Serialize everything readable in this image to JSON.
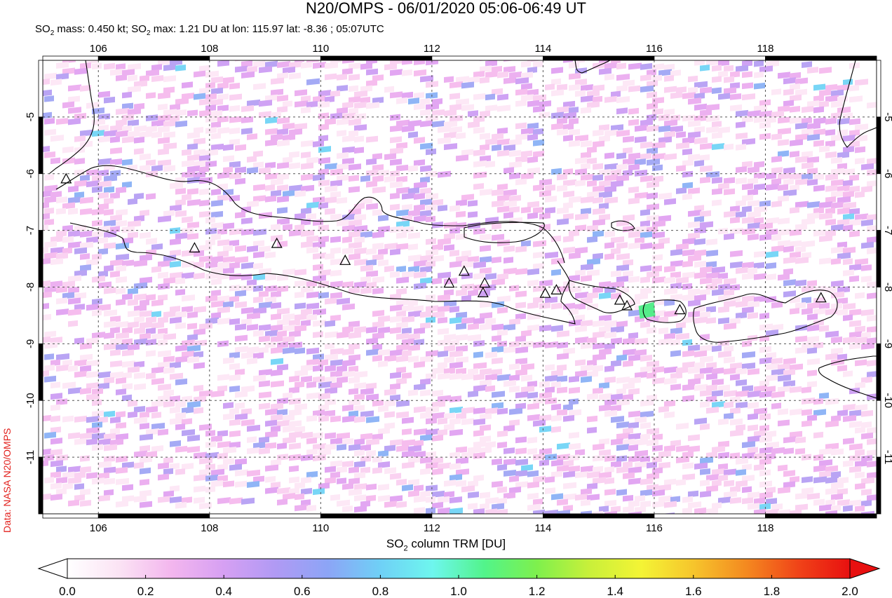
{
  "header": {
    "title": "N20/OMPS - 06/01/2020 05:06-06:49 UT",
    "subtitle_parts": [
      "SO",
      "2",
      " mass: 0.450 kt; SO",
      "2",
      " max: 1.21 DU at lon: 115.97 lat: -8.36 ; 05:07UTC"
    ]
  },
  "credit": "Data: NASA N20/OMPS",
  "map": {
    "lon_range": [
      105,
      120
    ],
    "lat_range": [
      -12,
      -4
    ],
    "lon_ticks": [
      106,
      108,
      110,
      112,
      114,
      116,
      118
    ],
    "lon_tick_labels": [
      "106",
      "108",
      "110",
      "112",
      "114",
      "116",
      "118"
    ],
    "lat_ticks": [
      -5,
      -6,
      -7,
      -8,
      -9,
      -10,
      -11
    ],
    "lat_tick_labels": [
      "-5",
      "-6",
      "-7",
      "-8",
      "-9",
      "-10",
      "-11"
    ],
    "gridlines": true,
    "volcanoes": [
      [
        105.42,
        -6.1
      ],
      [
        107.73,
        -7.32
      ],
      [
        109.21,
        -7.24
      ],
      [
        110.44,
        -7.54
      ],
      [
        112.31,
        -7.94
      ],
      [
        112.58,
        -7.73
      ],
      [
        112.95,
        -7.94
      ],
      [
        112.92,
        -8.11
      ],
      [
        114.04,
        -8.12
      ],
      [
        114.24,
        -8.06
      ],
      [
        115.38,
        -8.24
      ],
      [
        115.51,
        -8.34
      ],
      [
        116.46,
        -8.41
      ],
      [
        119.0,
        -8.2
      ]
    ],
    "max_pixel": {
      "lon": 115.97,
      "lat": -8.36,
      "value": 1.21
    }
  },
  "colorbar": {
    "label_parts": [
      "SO",
      "2",
      " column TRM [DU]"
    ],
    "min": 0.0,
    "max": 2.0,
    "tick_values": [
      0.0,
      0.2,
      0.4,
      0.6,
      0.8,
      1.0,
      1.2,
      1.4,
      1.6,
      1.8,
      2.0
    ],
    "tick_labels": [
      "0.0",
      "0.2",
      "0.4",
      "0.6",
      "0.8",
      "1.0",
      "1.2",
      "1.4",
      "1.6",
      "1.8",
      "2.0"
    ],
    "colors": [
      "#ffffff",
      "#fbe3f4",
      "#f3b6ee",
      "#d6a0f3",
      "#b09af4",
      "#8ca5f6",
      "#6fd0f6",
      "#6ef6ee",
      "#52f48a",
      "#7ef04d",
      "#c8f03a",
      "#f4f435",
      "#f6c52c",
      "#f48a20",
      "#f04418",
      "#e81010"
    ]
  }
}
